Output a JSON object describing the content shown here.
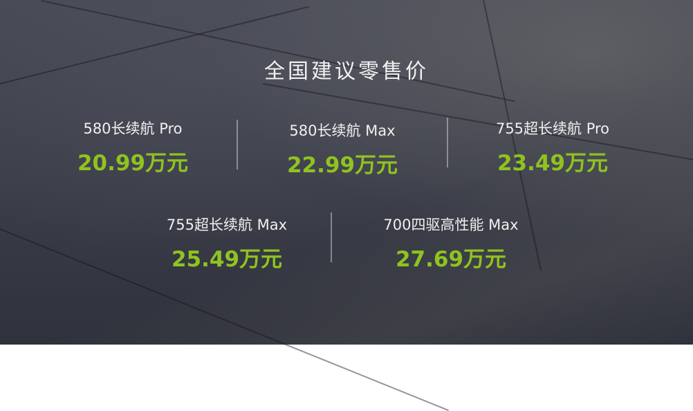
{
  "title": "全国建议零售价",
  "colors": {
    "price": "#8fc31f",
    "text": "#f0f0f0",
    "background": "#3e3f4a"
  },
  "items": [
    {
      "name": "580长续航 Pro",
      "price": "20.99万元"
    },
    {
      "name": "580长续航 Max",
      "price": "22.99万元"
    },
    {
      "name": "755超长续航 Pro",
      "price": "23.49万元"
    },
    {
      "name": "755超长续航 Max",
      "price": "25.49万元"
    },
    {
      "name": "700四驱高性能 Max",
      "price": "27.69万元"
    }
  ]
}
